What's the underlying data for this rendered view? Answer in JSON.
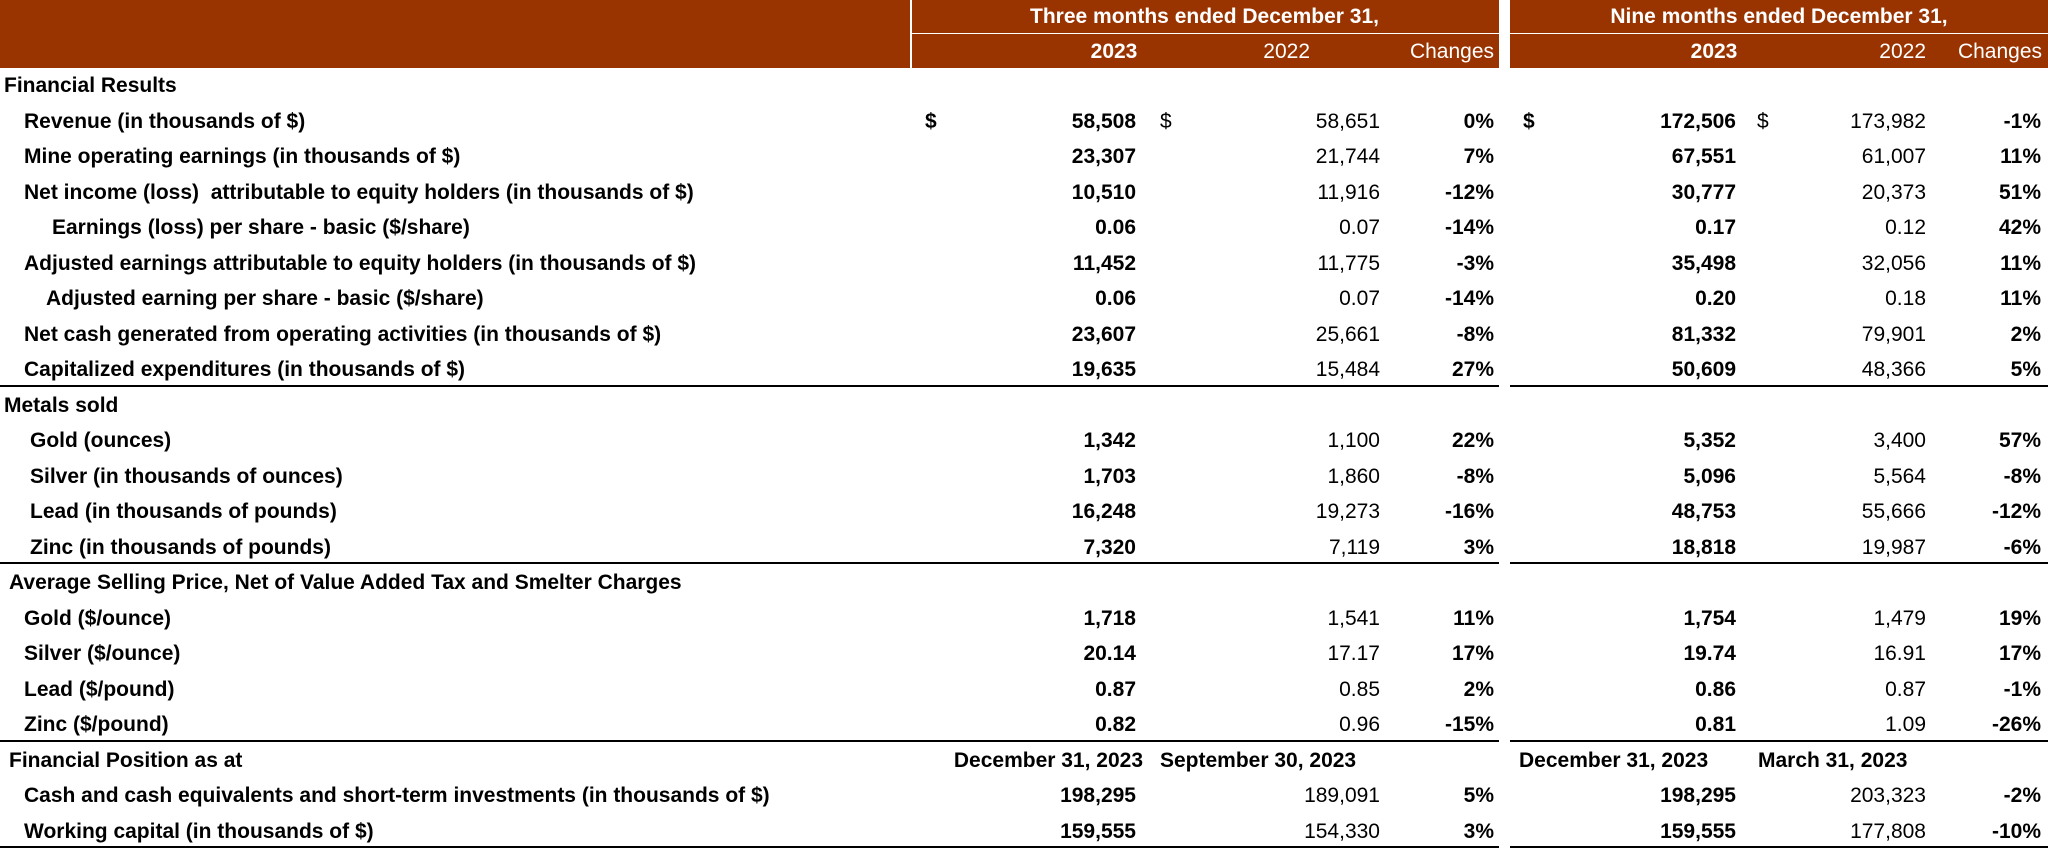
{
  "header": {
    "groups": [
      "Three months ended December 31,",
      "Nine months ended December 31,"
    ],
    "columns": [
      "2023",
      "2022",
      "Changes",
      "2023",
      "2022",
      "Changes"
    ]
  },
  "currency": "$",
  "sections": [
    {
      "title": "Financial Results",
      "rows": [
        {
          "label": "Revenue (in thousands of $)",
          "values": [
            "58,508",
            "58,651",
            "0%",
            "172,506",
            "173,982",
            "-1%"
          ],
          "currency": true
        },
        {
          "label": "Mine operating earnings (in thousands of $)",
          "values": [
            "23,307",
            "21,744",
            "7%",
            "67,551",
            "61,007",
            "11%"
          ]
        },
        {
          "label": "Net income (loss)  attributable to equity holders (in thousands of $)",
          "values": [
            "10,510",
            "11,916",
            "-12%",
            "30,777",
            "20,373",
            "51%"
          ]
        },
        {
          "label": "Earnings (loss) per share - basic ($/share)",
          "values": [
            "0.06",
            "0.07",
            "-14%",
            "0.17",
            "0.12",
            "42%"
          ]
        },
        {
          "label": "Adjusted earnings attributable to equity holders (in thousands of $)",
          "values": [
            "11,452",
            "11,775",
            "-3%",
            "35,498",
            "32,056",
            "11%"
          ]
        },
        {
          "label": "Adjusted earning per share - basic ($/share)",
          "values": [
            "0.06",
            "0.07",
            "-14%",
            "0.20",
            "0.18",
            "11%"
          ]
        },
        {
          "label": "Net cash generated from operating activities (in thousands of $)",
          "values": [
            "23,607",
            "25,661",
            "-8%",
            "81,332",
            "79,901",
            "2%"
          ]
        },
        {
          "label": "Capitalized expenditures (in thousands of $)",
          "values": [
            "19,635",
            "15,484",
            "27%",
            "50,609",
            "48,366",
            "5%"
          ]
        }
      ]
    },
    {
      "title": "Metals sold",
      "rows": [
        {
          "label": "Gold (ounces)",
          "values": [
            "1,342",
            "1,100",
            "22%",
            "5,352",
            "3,400",
            "57%"
          ]
        },
        {
          "label": "Silver (in thousands of ounces)",
          "values": [
            "1,703",
            "1,860",
            "-8%",
            "5,096",
            "5,564",
            "-8%"
          ]
        },
        {
          "label": "Lead (in thousands of pounds)",
          "values": [
            "16,248",
            "19,273",
            "-16%",
            "48,753",
            "55,666",
            "-12%"
          ]
        },
        {
          "label": "Zinc (in thousands of pounds)",
          "values": [
            "7,320",
            "7,119",
            "3%",
            "18,818",
            "19,987",
            "-6%"
          ]
        }
      ]
    },
    {
      "title": "Average Selling Price, Net of Value Added Tax and Smelter Charges",
      "rows": [
        {
          "label": "Gold ($/ounce)",
          "values": [
            "1,718",
            "1,541",
            "11%",
            "1,754",
            "1,479",
            "19%"
          ]
        },
        {
          "label": "Silver ($/ounce)",
          "values": [
            "20.14",
            "17.17",
            "17%",
            "19.74",
            "16.91",
            "17%"
          ]
        },
        {
          "label": "Lead ($/pound)",
          "values": [
            "0.87",
            "0.85",
            "2%",
            "0.86",
            "0.87",
            "-1%"
          ]
        },
        {
          "label": "Zinc ($/pound)",
          "values": [
            "0.82",
            "0.96",
            "-15%",
            "0.81",
            "1.09",
            "-26%"
          ]
        }
      ]
    },
    {
      "title": "Financial Position as at",
      "dates": [
        "December 31, 2023",
        "September 30, 2023",
        "December 31, 2023",
        "March 31, 2023"
      ],
      "rows": [
        {
          "label": "Cash and cash equivalents and short-term investments (in thousands of $)",
          "values": [
            "198,295",
            "189,091",
            "5%",
            "198,295",
            "203,323",
            "-2%"
          ]
        },
        {
          "label": "Working capital (in thousands of $)",
          "values": [
            "159,555",
            "154,330",
            "3%",
            "159,555",
            "177,808",
            "-10%"
          ]
        }
      ]
    }
  ]
}
